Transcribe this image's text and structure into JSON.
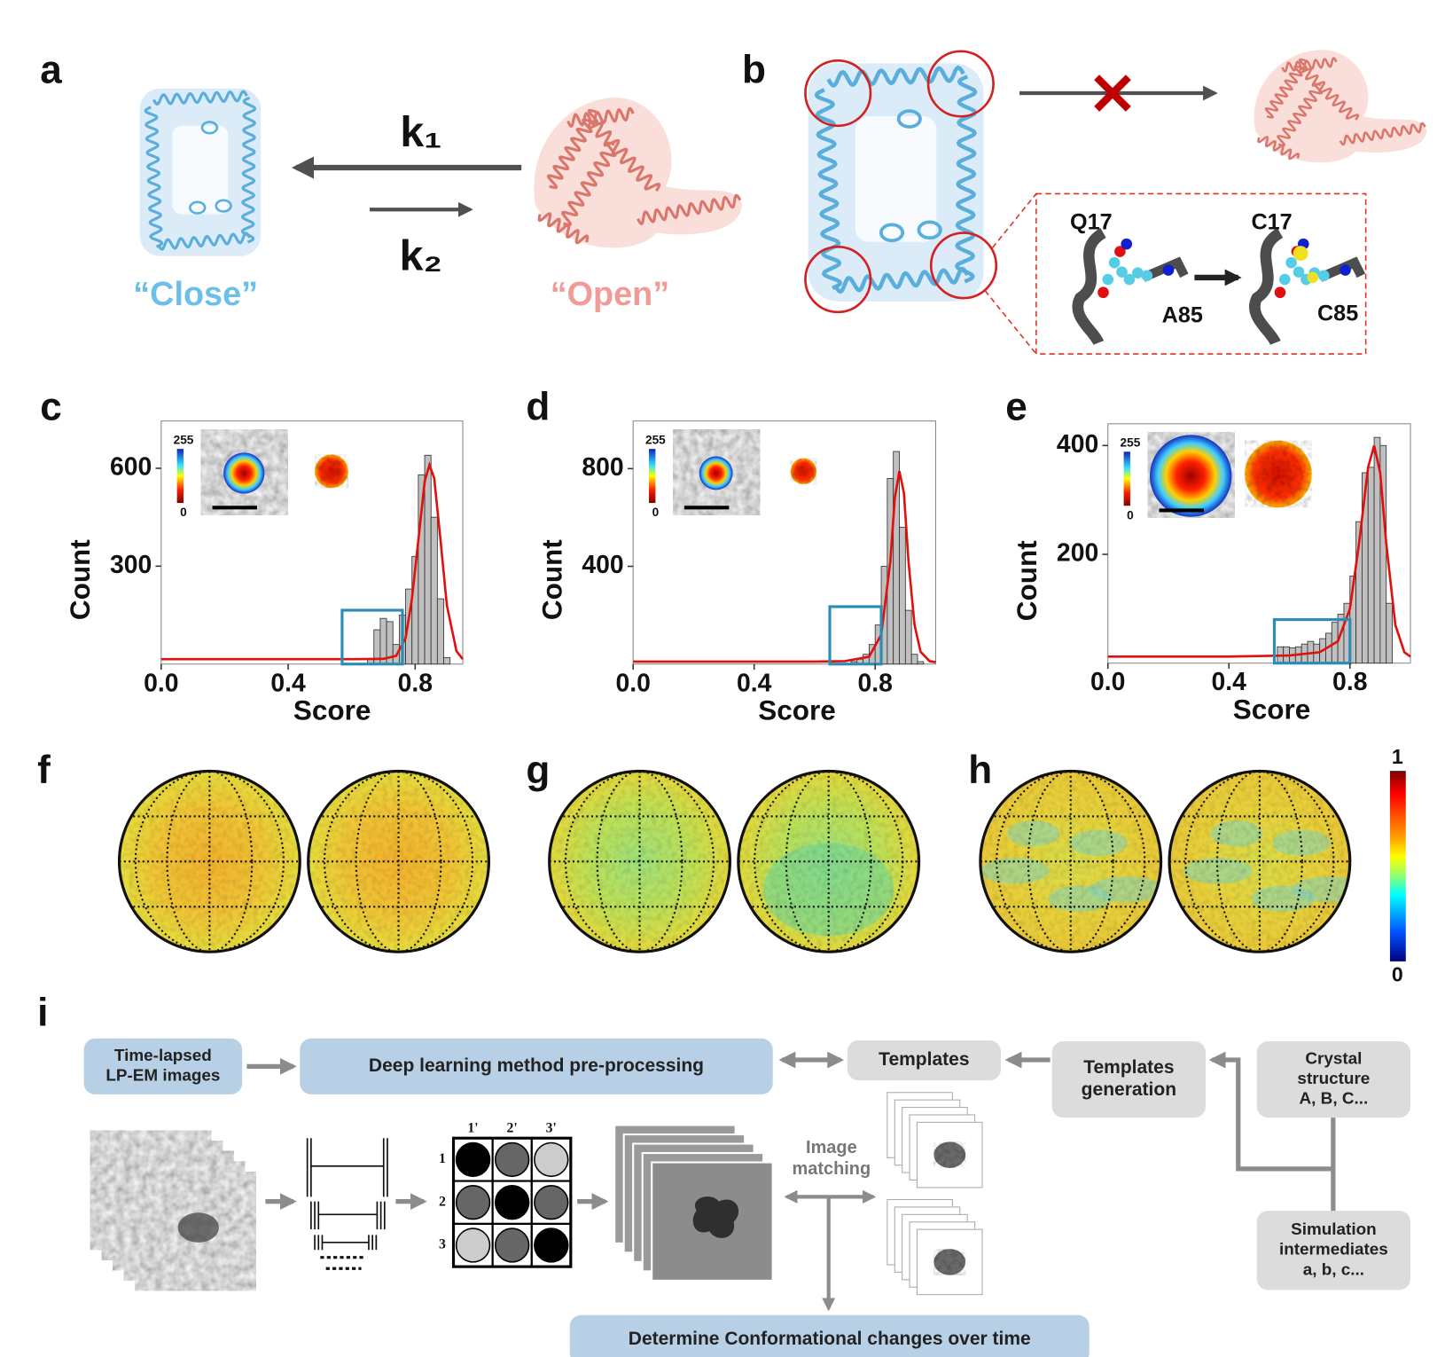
{
  "panel_labels": [
    "a",
    "b",
    "c",
    "d",
    "e",
    "f",
    "g",
    "h",
    "i"
  ],
  "panel_a": {
    "k1": "k₁",
    "k2": "k₂",
    "close": "“Close”",
    "open": "“Open”"
  },
  "panel_b": {
    "residues": [
      "Q17",
      "A85",
      "C17",
      "C85"
    ]
  },
  "chart_data": [
    {
      "type": "histogram",
      "xlabel": "Score",
      "ylabel": "Count",
      "color": "#c0c0c0",
      "bins": [
        0.65,
        0.67,
        0.69,
        0.71,
        0.73,
        0.75,
        0.77,
        0.79,
        0.81,
        0.83,
        0.85,
        0.87,
        0.89,
        0.91
      ],
      "values": [
        15,
        105,
        140,
        130,
        60,
        150,
        230,
        330,
        580,
        640,
        450,
        200,
        20
      ],
      "xlim": [
        0,
        0.95
      ],
      "ylim": [
        0,
        745
      ],
      "xticks": [
        {
          "value": 0,
          "label": "0.0"
        },
        0.4,
        0.8
      ],
      "yticks": [
        300,
        600
      ],
      "fit": {
        "color": "#e0100b",
        "x": [
          0,
          0.2,
          0.4,
          0.6,
          0.7,
          0.74,
          0.77,
          0.79,
          0.81,
          0.83,
          0.845,
          0.86,
          0.88,
          0.9,
          0.93,
          0.95
        ],
        "values": [
          15,
          15,
          15,
          15,
          16,
          25,
          80,
          200,
          380,
          560,
          610,
          570,
          380,
          180,
          40,
          15
        ]
      },
      "highlight": {
        "xlim": [
          0.57,
          0.76
        ],
        "ylim": [
          0,
          165
        ],
        "color": "#2a8db5"
      },
      "inset_ticks": [
        255,
        0
      ]
    },
    {
      "type": "histogram",
      "xlabel": "Score",
      "ylabel": "Count",
      "color": "#c0c0c0",
      "bins": [
        0.72,
        0.74,
        0.76,
        0.78,
        0.8,
        0.82,
        0.84,
        0.86,
        0.88,
        0.9,
        0.92,
        0.94,
        0.96
      ],
      "values": [
        10,
        20,
        40,
        80,
        160,
        400,
        760,
        870,
        560,
        220,
        40,
        10
      ],
      "xlim": [
        0,
        1
      ],
      "ylim": [
        0,
        995
      ],
      "xticks": [
        {
          "value": 0,
          "label": "0.0"
        },
        0.4,
        0.8
      ],
      "yticks": [
        400,
        800
      ],
      "fit": {
        "color": "#e0100b",
        "x": [
          0,
          0.2,
          0.4,
          0.6,
          0.7,
          0.78,
          0.82,
          0.85,
          0.865,
          0.88,
          0.895,
          0.91,
          0.93,
          0.95,
          0.98,
          1.0
        ],
        "values": [
          10,
          10,
          10,
          10,
          12,
          30,
          120,
          420,
          680,
          790,
          700,
          420,
          160,
          50,
          12,
          8
        ]
      },
      "highlight": {
        "xlim": [
          0.65,
          0.82
        ],
        "ylim": [
          0,
          235
        ],
        "color": "#2a8db5"
      },
      "inset_ticks": [
        255,
        0
      ]
    },
    {
      "type": "histogram",
      "xlabel": "Score",
      "ylabel": "Count",
      "color": "#c0c0c0",
      "bins": [
        0.56,
        0.58,
        0.6,
        0.62,
        0.64,
        0.66,
        0.68,
        0.7,
        0.72,
        0.74,
        0.76,
        0.78,
        0.8,
        0.82,
        0.84,
        0.86,
        0.88,
        0.9,
        0.92,
        0.94
      ],
      "values": [
        30,
        30,
        28,
        30,
        35,
        40,
        35,
        45,
        55,
        75,
        90,
        110,
        160,
        260,
        350,
        360,
        415,
        400,
        110
      ],
      "xlim": [
        0,
        1
      ],
      "ylim": [
        0,
        440
      ],
      "xticks": [
        {
          "value": 0,
          "label": "0.0"
        },
        0.4,
        0.8
      ],
      "yticks": [
        200,
        400
      ],
      "fit": {
        "color": "#e0100b",
        "x": [
          0,
          0.2,
          0.4,
          0.6,
          0.7,
          0.76,
          0.8,
          0.83,
          0.86,
          0.88,
          0.9,
          0.92,
          0.95,
          0.98,
          1.0
        ],
        "values": [
          12,
          12,
          12,
          14,
          20,
          40,
          100,
          220,
          360,
          400,
          350,
          220,
          70,
          20,
          12
        ]
      },
      "highlight": {
        "xlim": [
          0.55,
          0.8
        ],
        "ylim": [
          0,
          80
        ],
        "color": "#2a8db5"
      },
      "inset_ticks": [
        255,
        0
      ]
    }
  ],
  "colorbar": {
    "ylim": [
      0,
      1
    ],
    "yticks": [
      1,
      0
    ]
  },
  "panel_i": {
    "input_box": [
      "Time-lapsed",
      "LP-EM images"
    ],
    "preprocess_box": "Deep learning method pre-processing",
    "templates_box": "Templates",
    "generation_box": [
      "Templates",
      "generation"
    ],
    "crystal_box": [
      "Crystal",
      "structure",
      "A, B, C..."
    ],
    "simulation_box": [
      "Simulation",
      "intermediates",
      "a, b, c..."
    ],
    "matching_label": [
      "Image",
      "matching"
    ],
    "output_box": "Determine Conformational changes over time",
    "matrix_columns": [
      "1'",
      "2'",
      "3'"
    ],
    "matrix_rows": [
      "1",
      "2",
      "3"
    ]
  }
}
